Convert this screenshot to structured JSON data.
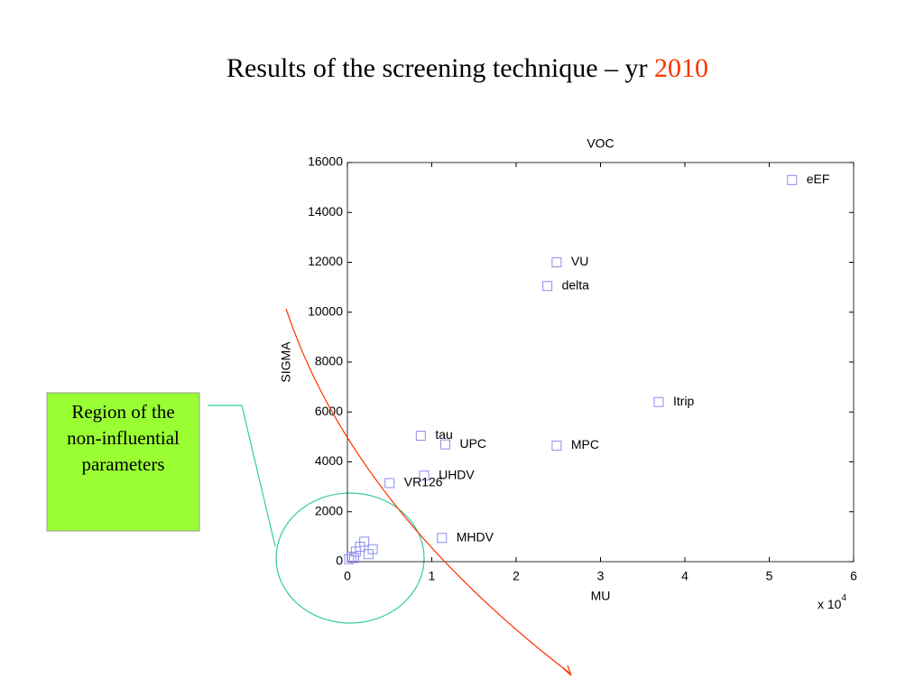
{
  "slide": {
    "title": "Results of the screening technique – yr",
    "title_year": "2010",
    "callout": "Region of the non-influential parameters"
  },
  "chart_data": {
    "type": "scatter",
    "title": "VOC",
    "x_label": "MU",
    "y_label": "SIGMA",
    "x_multiplier": {
      "base": "x 10",
      "exponent": "4"
    },
    "color": "#8c8cf0",
    "x": [
      5.27,
      2.48,
      2.37,
      3.69,
      2.48,
      1.16,
      0.87,
      0.91,
      0.5,
      1.12,
      0.02,
      0.05,
      0.1,
      0.15,
      0.2,
      0.25,
      0.08,
      0.3
    ],
    "values": [
      15300,
      12000,
      11050,
      6400,
      4650,
      4700,
      5050,
      3450,
      3150,
      950,
      100,
      200,
      400,
      600,
      800,
      300,
      150,
      500
    ],
    "point_labels": [
      "eEF",
      "VU",
      "delta",
      "Itrip",
      "MPC",
      "UPC",
      "tau",
      "UHDV",
      "VR126",
      "MHDV",
      null,
      null,
      null,
      null,
      null,
      null,
      null,
      null
    ],
    "xlim": [
      0,
      6
    ],
    "ylim": [
      0,
      16000
    ],
    "xticks": [
      0,
      1,
      2,
      3,
      4,
      5,
      6
    ],
    "yticks": [
      0,
      2000,
      4000,
      6000,
      8000,
      10000,
      12000,
      14000,
      16000
    ]
  }
}
